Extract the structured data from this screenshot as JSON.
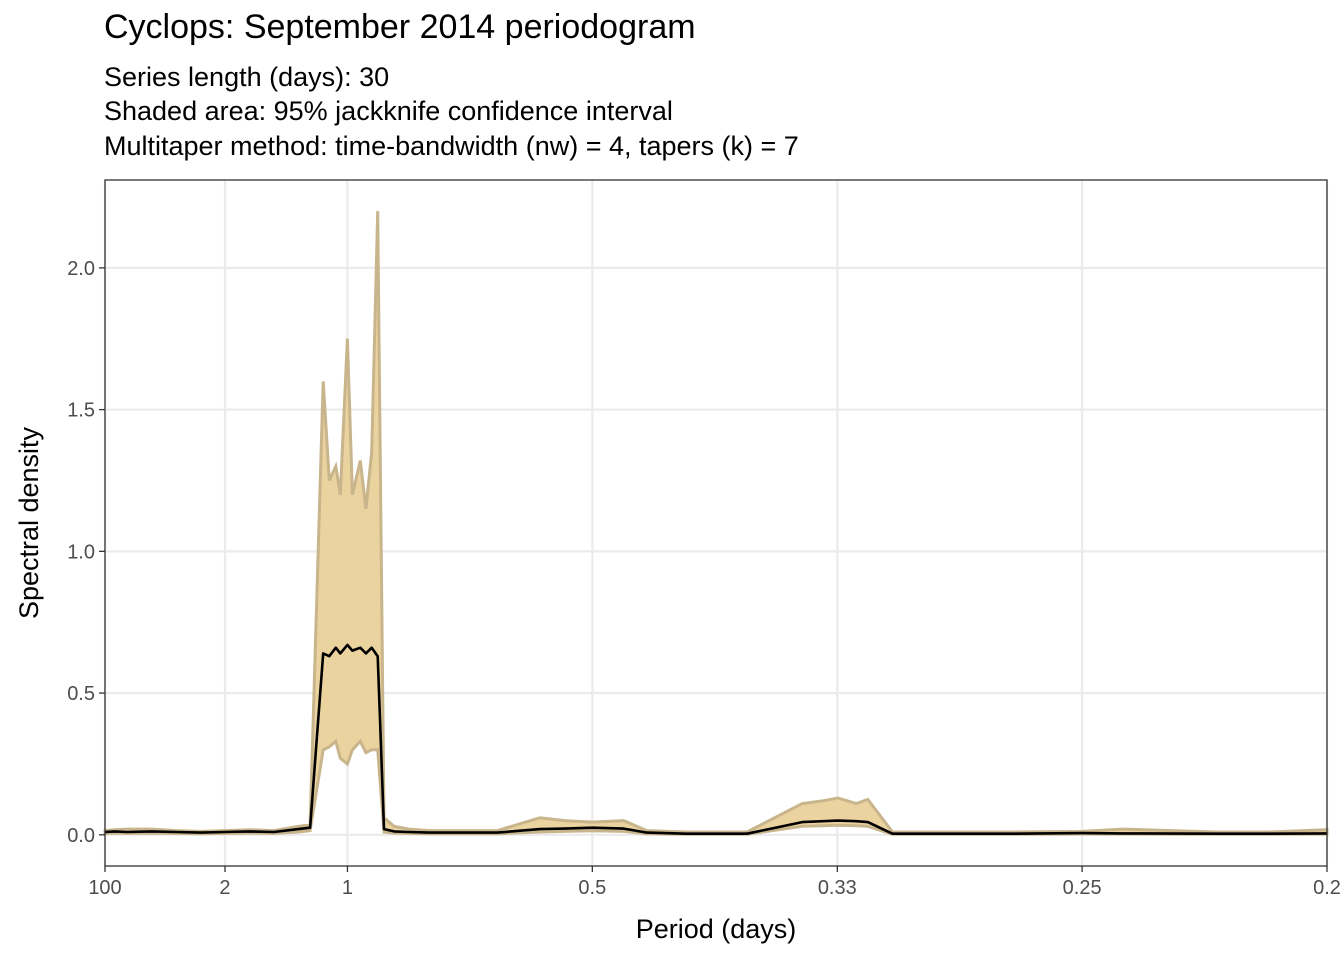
{
  "chart_data": {
    "type": "area",
    "title": "Cyclops: September 2014 periodogram",
    "subtitle_lines": [
      "Series length (days): 30",
      "Shaded area: 95% jackknife confidence interval",
      "Multitaper method: time-bandwidth (nw) = 4, tapers (k) = 7"
    ],
    "xlabel": "Period (days)",
    "ylabel": "Spectral density",
    "x_scale": "reciprocal (frequency-linear)",
    "xlim_period_days": [
      100,
      0.2
    ],
    "x_ticks": [
      {
        "value": 100,
        "label": "100"
      },
      {
        "value": 2,
        "label": "2"
      },
      {
        "value": 1,
        "label": "1"
      },
      {
        "value": 0.5,
        "label": "0.5"
      },
      {
        "value": 0.3333,
        "label": "0.33"
      },
      {
        "value": 0.25,
        "label": "0.25"
      },
      {
        "value": 0.2,
        "label": "0.2"
      }
    ],
    "y_ticks": [
      {
        "value": 0,
        "label": "0.0"
      },
      {
        "value": 0.5,
        "label": "0.5"
      },
      {
        "value": 1,
        "label": "1.0"
      },
      {
        "value": 1.5,
        "label": "1.5"
      },
      {
        "value": 2,
        "label": "2.0"
      }
    ],
    "ylim": [
      -0.11,
      2.31
    ],
    "grid": true,
    "colors": {
      "band_fill": "#ebd3a0",
      "band_edge": "#c9b58c",
      "line": "#000000",
      "grid": "#ebebeb"
    },
    "series": [
      {
        "x_period_days": [
          100,
          20,
          10,
          5,
          3.33,
          2.5,
          2,
          1.67,
          1.43,
          1.25,
          1.18,
          1.11,
          1.08,
          1.05,
          1.03,
          1,
          0.98,
          0.95,
          0.93,
          0.91,
          0.89,
          0.87,
          0.84,
          0.8,
          0.75,
          0.7,
          0.62,
          0.56,
          0.53,
          0.5,
          0.47,
          0.45,
          0.42,
          0.38,
          0.35,
          0.34,
          0.333,
          0.325,
          0.32,
          0.31,
          0.29,
          0.27,
          0.25,
          0.24,
          0.22,
          0.21,
          0.2
        ],
        "spectral_density": [
          0.01,
          0.012,
          0.01,
          0.012,
          0.01,
          0.008,
          0.01,
          0.012,
          0.01,
          0.02,
          0.025,
          0.64,
          0.63,
          0.66,
          0.64,
          0.67,
          0.65,
          0.66,
          0.64,
          0.66,
          0.63,
          0.02,
          0.012,
          0.01,
          0.008,
          0.008,
          0.008,
          0.02,
          0.022,
          0.025,
          0.022,
          0.008,
          0.004,
          0.004,
          0.045,
          0.048,
          0.05,
          0.048,
          0.045,
          0.004,
          0.004,
          0.004,
          0.006,
          0.005,
          0.004,
          0.004,
          0.005
        ],
        "ci_lower": [
          0.005,
          0.006,
          0.005,
          0.006,
          0.005,
          0.004,
          0.005,
          0.006,
          0.005,
          0.01,
          0.015,
          0.3,
          0.31,
          0.33,
          0.27,
          0.25,
          0.3,
          0.33,
          0.29,
          0.3,
          0.3,
          0.01,
          0.006,
          0.005,
          0.004,
          0.004,
          0.004,
          0.01,
          0.012,
          0.014,
          0.012,
          0.004,
          0.002,
          0.002,
          0.03,
          0.032,
          0.034,
          0.032,
          0.03,
          0.002,
          0.002,
          0.002,
          0.003,
          0.003,
          0.002,
          0.002,
          0.003
        ],
        "ci_upper": [
          0.015,
          0.018,
          0.02,
          0.02,
          0.015,
          0.012,
          0.015,
          0.018,
          0.015,
          0.03,
          0.035,
          1.6,
          1.25,
          1.3,
          1.2,
          1.75,
          1.2,
          1.32,
          1.15,
          1.35,
          2.2,
          0.06,
          0.03,
          0.02,
          0.015,
          0.015,
          0.015,
          0.06,
          0.05,
          0.045,
          0.05,
          0.015,
          0.01,
          0.01,
          0.11,
          0.12,
          0.13,
          0.11,
          0.125,
          0.01,
          0.01,
          0.01,
          0.012,
          0.02,
          0.01,
          0.01,
          0.018
        ]
      }
    ]
  }
}
